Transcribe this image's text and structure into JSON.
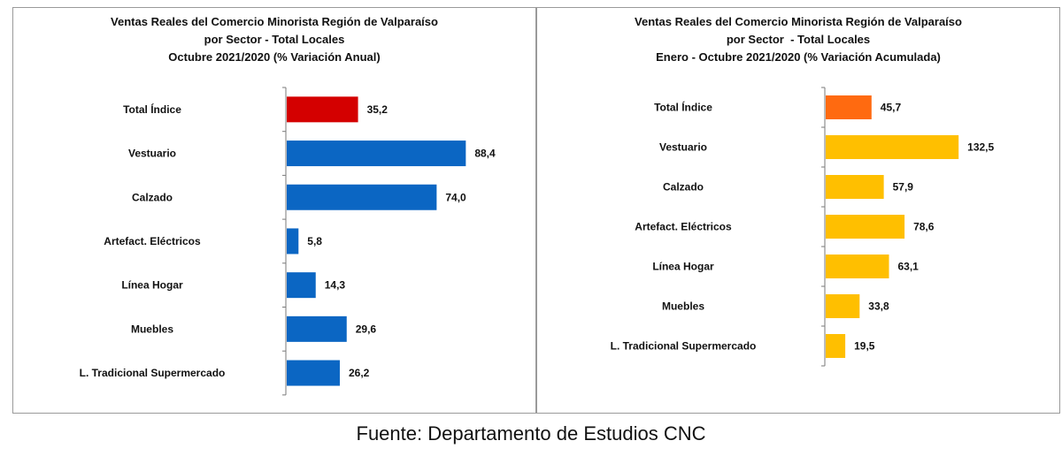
{
  "chart_data": [
    {
      "type": "bar",
      "orientation": "horizontal",
      "title_lines": [
        "Ventas Reales del Comercio Minorista Región de Valparaíso",
        "por Sector - Total Locales",
        "Octubre 2021/2020 (% Variación Anual)"
      ],
      "categories": [
        "Total Índice",
        "Vestuario",
        "Calzado",
        "Artefact. Eléctricos",
        "Línea Hogar",
        "Muebles",
        "L. Tradicional Supermercado"
      ],
      "values": [
        35.2,
        88.4,
        74.0,
        5.8,
        14.3,
        29.6,
        26.2
      ],
      "value_labels": [
        "35,2",
        "88,4",
        "74,0",
        "5,8",
        "14,3",
        "29,6",
        "26,2"
      ],
      "bar_colors": [
        "#d40000",
        "#0b66c3",
        "#0b66c3",
        "#0b66c3",
        "#0b66c3",
        "#0b66c3",
        "#0b66c3"
      ],
      "xlim": [
        0,
        90
      ],
      "grid": false,
      "legend": "none"
    },
    {
      "type": "bar",
      "orientation": "horizontal",
      "title_lines": [
        "Ventas Reales del Comercio Minorista Región de Valparaíso",
        "por Sector  - Total Locales",
        "Enero - Octubre 2021/2020 (% Variación Acumulada)"
      ],
      "categories": [
        "Total Índice",
        "Vestuario",
        "Calzado",
        "Artefact. Eléctricos",
        "Línea Hogar",
        "Muebles",
        "L. Tradicional Supermercado"
      ],
      "values": [
        45.7,
        132.5,
        57.9,
        78.6,
        63.1,
        33.8,
        19.5
      ],
      "value_labels": [
        "45,7",
        "132,5",
        "57,9",
        "78,6",
        "63,1",
        "33,8",
        "19,5"
      ],
      "bar_colors": [
        "#ff6a10",
        "#ffbf00",
        "#ffbf00",
        "#ffbf00",
        "#ffbf00",
        "#ffbf00",
        "#ffbf00"
      ],
      "xlim": [
        0,
        135
      ],
      "grid": false,
      "legend": "none"
    }
  ],
  "source": "Fuente: Departamento de Estudios CNC"
}
